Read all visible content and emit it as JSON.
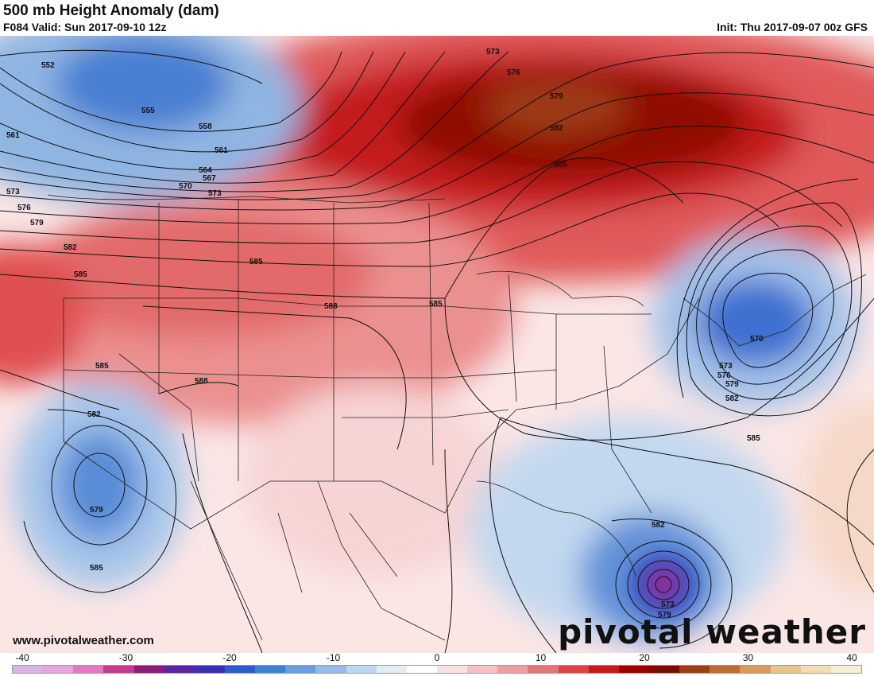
{
  "header": {
    "title": "500 mb Height Anomaly (dam)",
    "valid": "F084 Valid: Sun 2017-09-10 12z",
    "init": "Init: Thu 2017-09-07 00z GFS"
  },
  "footer": {
    "website": "www.pivotalweather.com",
    "brand": "pivotal weather"
  },
  "colorbar": {
    "ticks": [
      "-40",
      "-30",
      "-20",
      "-10",
      "0",
      "10",
      "20",
      "30",
      "40"
    ],
    "colors": [
      "#d9b4e8",
      "#e8a4dc",
      "#e477c6",
      "#c8388f",
      "#8f1a7a",
      "#5a23a8",
      "#3a2fb8",
      "#2c5bd1",
      "#3f7fd8",
      "#6a9fdf",
      "#95bce7",
      "#bed6ef",
      "#e4edf6",
      "#ffffff",
      "#fbe2e2",
      "#f5c2c2",
      "#eea0a0",
      "#e57474",
      "#d94545",
      "#c41a1a",
      "#9c0000",
      "#7d0c00",
      "#a33c16",
      "#c26a2f",
      "#d99a5a",
      "#e8c48c",
      "#f1ddb4",
      "#f7eed6"
    ]
  },
  "contour_labels": [
    "552",
    "555",
    "558",
    "561",
    "564",
    "567",
    "570",
    "573",
    "576",
    "579",
    "582",
    "585",
    "588"
  ],
  "map_labels": {
    "nw_trough": [
      "552",
      "555",
      "558",
      "561",
      "561",
      "564",
      "567",
      "570",
      "573",
      "573",
      "576",
      "579",
      "582",
      "585"
    ],
    "canada_ridge": [
      "573",
      "576",
      "579",
      "582",
      "585"
    ],
    "west_us": [
      "588",
      "585",
      "588",
      "585"
    ],
    "pacific_low": [
      "585",
      "582",
      "579",
      "585"
    ],
    "ne_low": [
      "570",
      "573",
      "576",
      "579",
      "582",
      "585"
    ],
    "irma": [
      "582",
      "573",
      "579"
    ]
  }
}
